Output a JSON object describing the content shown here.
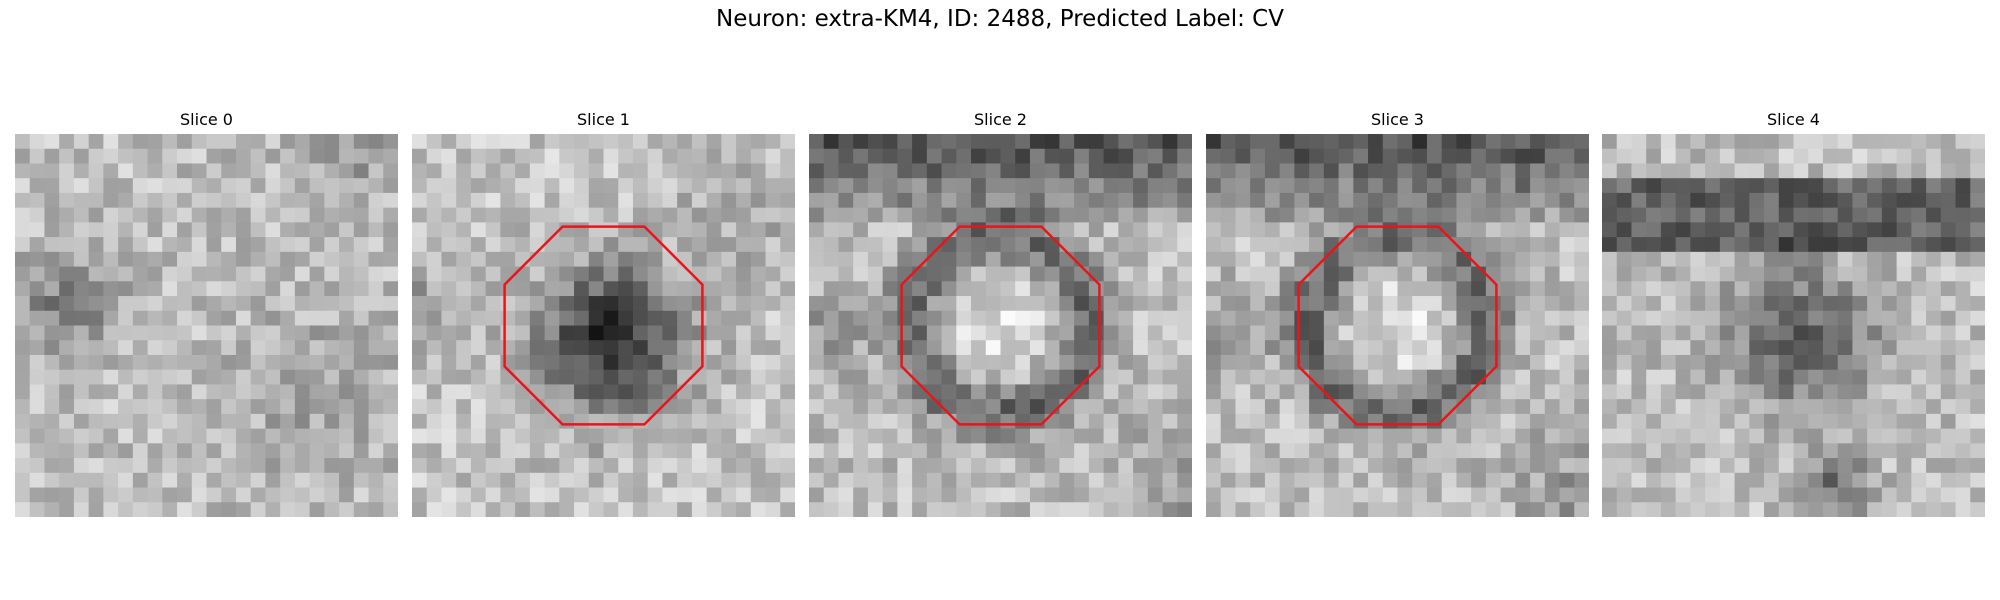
{
  "figure": {
    "title": "Neuron: extra-KM4, ID: 2488, Predicted Label: CV"
  },
  "panels": [
    {
      "title": "Slice 0",
      "pattern": "uniform-light",
      "overlay": false
    },
    {
      "title": "Slice 1",
      "pattern": "dark-center",
      "overlay": true
    },
    {
      "title": "Slice 2",
      "pattern": "ring-dark-top",
      "overlay": true
    },
    {
      "title": "Slice 3",
      "pattern": "ring-dark-top",
      "overlay": true
    },
    {
      "title": "Slice 4",
      "pattern": "dark-band-blob",
      "overlay": false
    }
  ],
  "overlay_color": "#e8151b"
}
